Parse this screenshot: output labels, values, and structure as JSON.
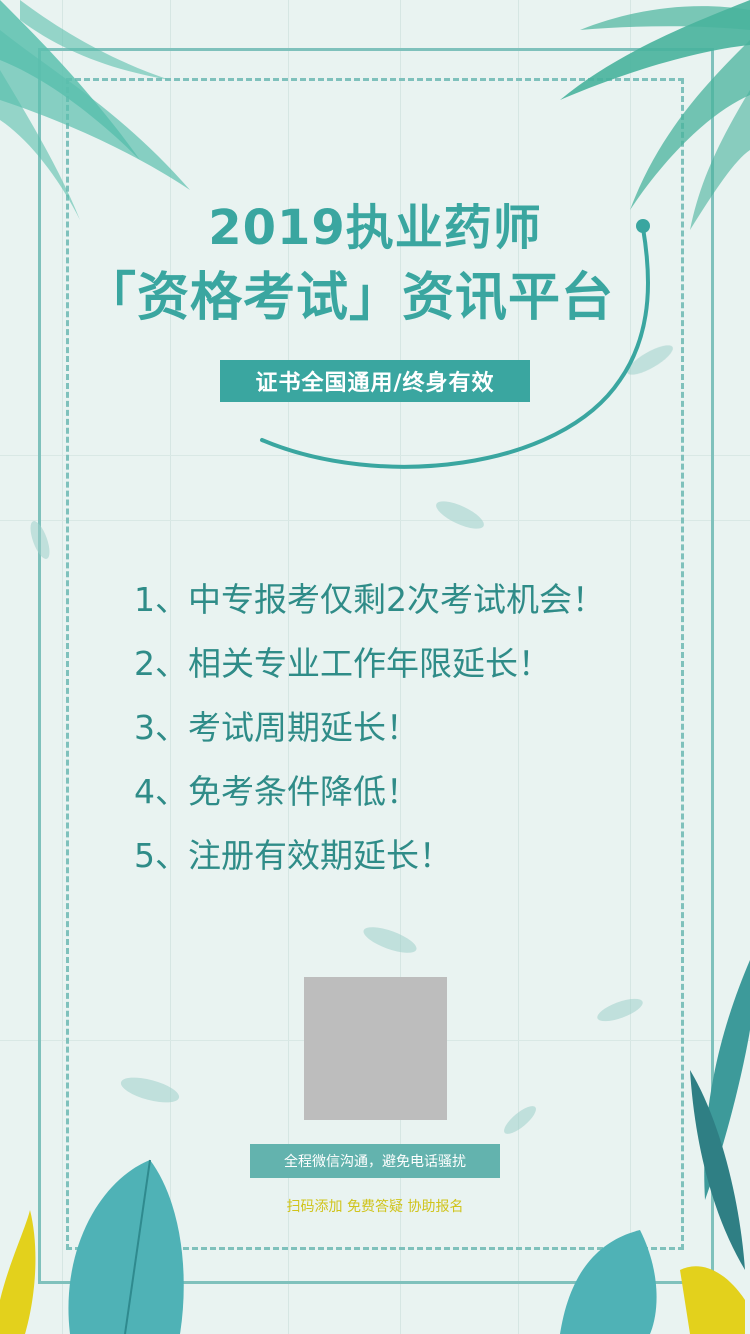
{
  "header": {
    "title_line1": "2019执业药师",
    "title_line2": "「资格考试」资讯平台",
    "badge": "证书全国通用/终身有效"
  },
  "points": [
    "1、中专报考仅剩2次考试机会！",
    "2、相关专业工作年限延长！",
    "3、考试周期延长！",
    "4、免考条件降低！",
    "5、注册有效期延长！"
  ],
  "footer": {
    "note": "全程微信沟通，避免电话骚扰",
    "sub": "扫码添加 免费答疑 协助报名"
  },
  "colors": {
    "accent": "#3aa6a0",
    "frame": "#7fc1bc",
    "background": "#e9f3f1",
    "sub_text": "#d0c41c"
  }
}
